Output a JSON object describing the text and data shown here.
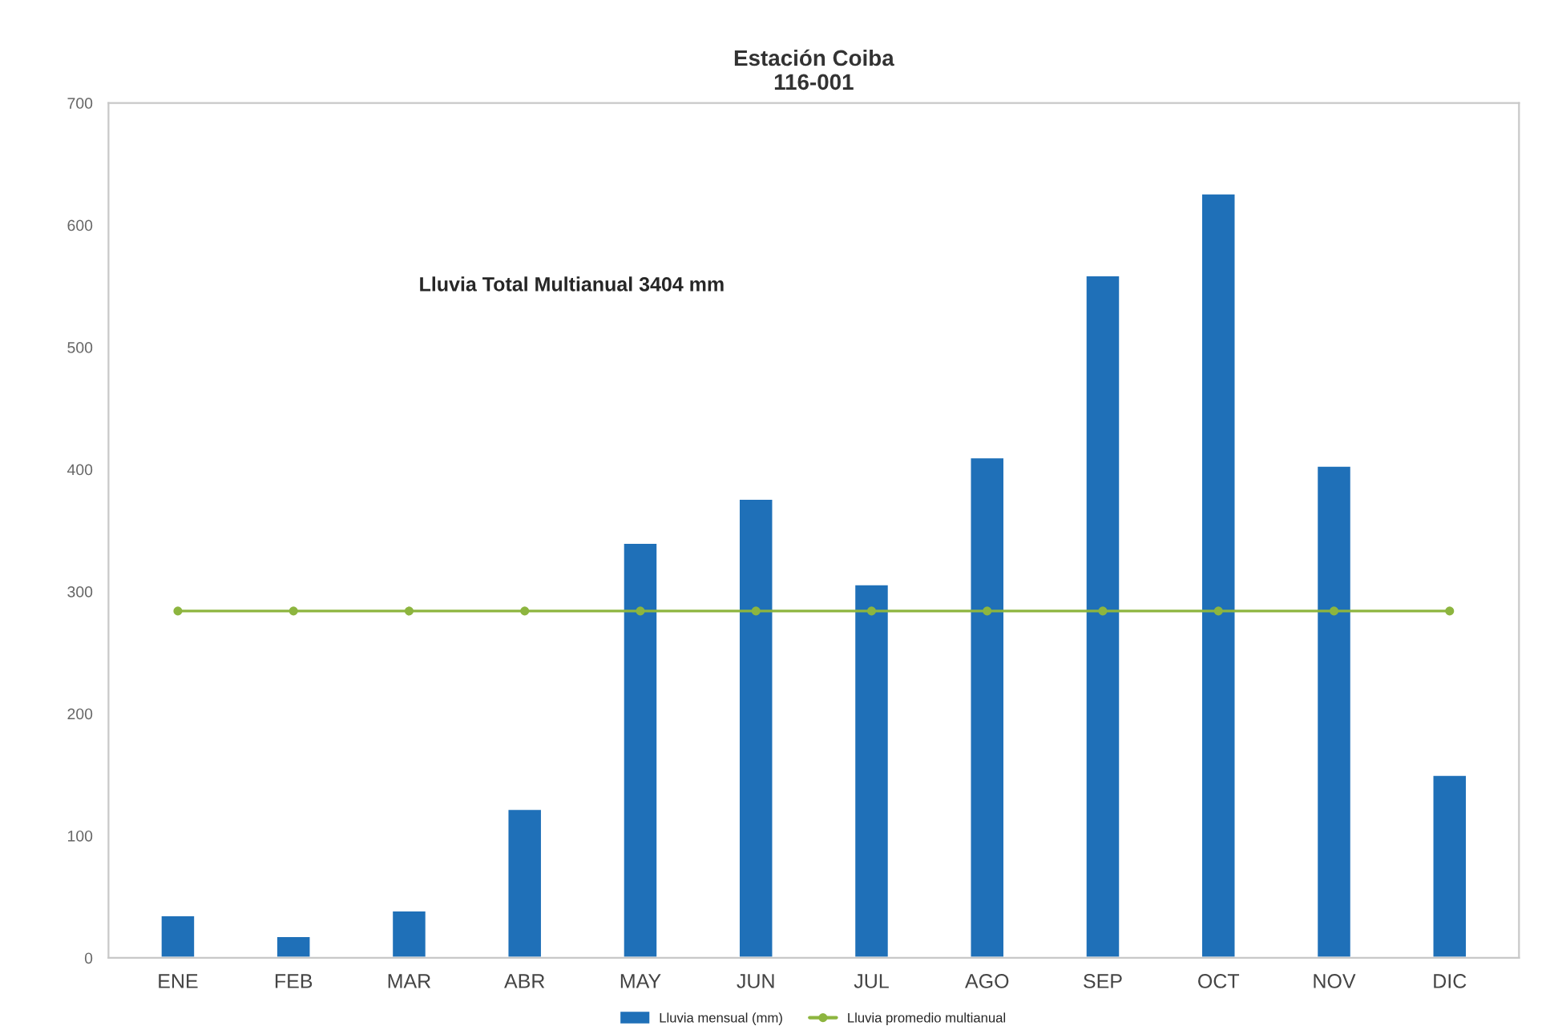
{
  "chart_data": {
    "type": "bar",
    "title": "Estación Coiba\n116-001",
    "categories": [
      "ENE",
      "FEB",
      "MAR",
      "ABR",
      "MAY",
      "JUN",
      "JUL",
      "AGO",
      "SEP",
      "OCT",
      "NOV",
      "DIC"
    ],
    "series": [
      {
        "name": "Lluvia mensual (mm)",
        "color": "#1f70b8",
        "values": [
          35,
          18,
          39,
          122,
          340,
          376,
          306,
          410,
          559,
          626,
          403,
          150
        ]
      },
      {
        "name": "Lluvia promedio multianual",
        "type": "line",
        "color": "#8db53f",
        "marker": "circle",
        "values": [
          284,
          284,
          284,
          284,
          284,
          284,
          284,
          284,
          284,
          284,
          284,
          284
        ]
      }
    ],
    "ylim": [
      0,
      700
    ],
    "yticks": [
      0,
      100,
      200,
      300,
      400,
      500,
      600,
      700
    ],
    "annotations": [
      "Lluvia Total Multianual 3404 mm"
    ],
    "legend": "bottom",
    "grid": false
  }
}
